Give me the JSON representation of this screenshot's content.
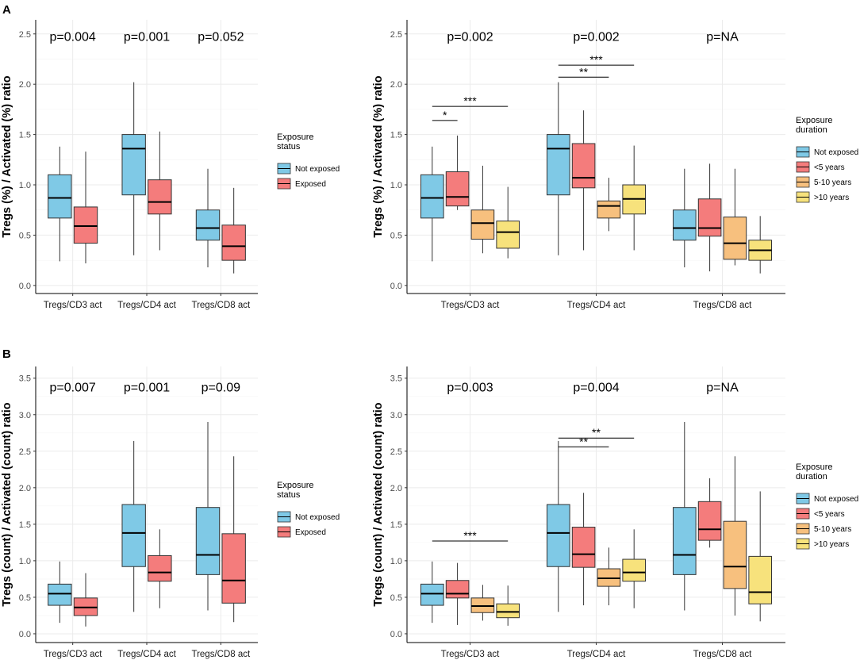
{
  "panel_labels": [
    "A",
    "B"
  ],
  "colors": {
    "Not exposed": "#7FC9E6",
    "Exposed": "#F47C7C",
    "<5 years": "#F47C7C",
    "5-10 years": "#F7C07E",
    ">10 years": "#F7E27C"
  },
  "chart_data": [
    {
      "id": "A-left",
      "type": "box",
      "ylabel": "Tregs (%) / Activated (%) ratio",
      "ylim": [
        -0.08,
        2.64
      ],
      "yticks": [
        0.0,
        0.5,
        1.0,
        1.5,
        2.0,
        2.5
      ],
      "yticklabels": [
        "0.0",
        "0.5",
        "1.0",
        "1.5",
        "2.0",
        "2.5"
      ],
      "categories": [
        "Tregs/CD3 act",
        "Tregs/CD4 act",
        "Tregs/CD8 act"
      ],
      "pvalues": [
        "p=0.004",
        "p=0.001",
        "p=0.052"
      ],
      "legend": {
        "title": "Exposure\nstatus",
        "items": [
          "Not exposed",
          "Exposed"
        ]
      },
      "groups": [
        "Not exposed",
        "Exposed"
      ],
      "boxes": [
        [
          [
            0.24,
            0.67,
            0.87,
            1.1,
            1.38
          ],
          [
            0.22,
            0.42,
            0.59,
            0.78,
            1.33
          ]
        ],
        [
          [
            0.3,
            0.9,
            1.36,
            1.5,
            2.02
          ],
          [
            0.35,
            0.71,
            0.83,
            1.05,
            1.53
          ]
        ],
        [
          [
            0.18,
            0.45,
            0.57,
            0.75,
            1.16
          ],
          [
            0.12,
            0.25,
            0.39,
            0.6,
            0.97
          ]
        ]
      ],
      "brackets": []
    },
    {
      "id": "A-right",
      "type": "box",
      "ylabel": "Tregs (%) / Activated (%) ratio",
      "ylim": [
        -0.08,
        2.64
      ],
      "yticks": [
        0.0,
        0.5,
        1.0,
        1.5,
        2.0,
        2.5
      ],
      "yticklabels": [
        "0.0",
        "0.5",
        "1.0",
        "1.5",
        "2.0",
        "2.5"
      ],
      "categories": [
        "Tregs/CD3 act",
        "Tregs/CD4 act",
        "Tregs/CD8 act"
      ],
      "pvalues": [
        "p=0.002",
        "p=0.002",
        "p=NA"
      ],
      "legend": {
        "title": "Exposure\nduration",
        "items": [
          "Not exposed",
          "<5 years",
          "5-10 years",
          ">10 years"
        ]
      },
      "groups": [
        "Not exposed",
        "<5 years",
        "5-10 years",
        ">10 years"
      ],
      "boxes": [
        [
          [
            0.24,
            0.67,
            0.87,
            1.1,
            1.38
          ],
          [
            0.75,
            0.79,
            0.88,
            1.13,
            1.49
          ],
          [
            0.32,
            0.46,
            0.62,
            0.75,
            1.19
          ],
          [
            0.27,
            0.37,
            0.53,
            0.64,
            0.98
          ]
        ],
        [
          [
            0.3,
            0.9,
            1.36,
            1.5,
            2.02
          ],
          [
            0.35,
            0.97,
            1.07,
            1.41,
            1.74
          ],
          [
            0.54,
            0.67,
            0.79,
            0.84,
            1.07
          ],
          [
            0.35,
            0.71,
            0.86,
            1.0,
            1.39
          ]
        ],
        [
          [
            0.18,
            0.45,
            0.57,
            0.75,
            1.16
          ],
          [
            0.14,
            0.49,
            0.57,
            0.86,
            1.21
          ],
          [
            0.2,
            0.26,
            0.42,
            0.68,
            1.16
          ],
          [
            0.12,
            0.25,
            0.35,
            0.45,
            0.69
          ]
        ]
      ],
      "brackets": [
        {
          "cat": 0,
          "from": 0,
          "to": 1,
          "y": 1.64,
          "label": "*"
        },
        {
          "cat": 0,
          "from": 0,
          "to": 3,
          "y": 1.78,
          "label": "***"
        },
        {
          "cat": 1,
          "from": 0,
          "to": 2,
          "y": 2.07,
          "label": "**"
        },
        {
          "cat": 1,
          "from": 0,
          "to": 3,
          "y": 2.19,
          "label": "***"
        }
      ]
    },
    {
      "id": "B-left",
      "type": "box",
      "ylabel": "Tregs (count) / Activated (count) ratio",
      "ylim": [
        -0.12,
        3.66
      ],
      "yticks": [
        0.0,
        0.5,
        1.0,
        1.5,
        2.0,
        2.5,
        3.0,
        3.5
      ],
      "yticklabels": [
        "0.0",
        "0.5",
        "1.0",
        "1.5",
        "2.0",
        "2.5",
        "3.0",
        "3.5"
      ],
      "categories": [
        "Tregs/CD3 act",
        "Tregs/CD4 act",
        "Tregs/CD8 act"
      ],
      "pvalues": [
        "p=0.007",
        "p=0.001",
        "p=0.09"
      ],
      "legend": {
        "title": "Exposure\nstatus",
        "items": [
          "Not exposed",
          "Exposed"
        ]
      },
      "groups": [
        "Not exposed",
        "Exposed"
      ],
      "boxes": [
        [
          [
            0.15,
            0.39,
            0.55,
            0.68,
            0.99
          ],
          [
            0.1,
            0.25,
            0.36,
            0.49,
            0.83
          ]
        ],
        [
          [
            0.3,
            0.92,
            1.38,
            1.77,
            2.64
          ],
          [
            0.35,
            0.72,
            0.84,
            1.07,
            1.43
          ]
        ],
        [
          [
            0.32,
            0.81,
            1.08,
            1.73,
            2.9
          ],
          [
            0.16,
            0.42,
            0.73,
            1.37,
            2.43
          ]
        ]
      ],
      "brackets": []
    },
    {
      "id": "B-right",
      "type": "box",
      "ylabel": "Tregs (count) / Activated (count) ratio",
      "ylim": [
        -0.12,
        3.66
      ],
      "yticks": [
        0.0,
        0.5,
        1.0,
        1.5,
        2.0,
        2.5,
        3.0,
        3.5
      ],
      "yticklabels": [
        "0.0",
        "0.5",
        "1.0",
        "1.5",
        "2.0",
        "2.5",
        "3.0",
        "3.5"
      ],
      "categories": [
        "Tregs/CD3 act",
        "Tregs/CD4 act",
        "Tregs/CD8 act"
      ],
      "pvalues": [
        "p=0.003",
        "p=0.004",
        "p=NA"
      ],
      "legend": {
        "title": "Exposure\nduration",
        "items": [
          "Not exposed",
          "<5 years",
          "5-10 years",
          ">10 years"
        ]
      },
      "groups": [
        "Not exposed",
        "<5 years",
        "5-10 years",
        ">10 years"
      ],
      "boxes": [
        [
          [
            0.15,
            0.39,
            0.55,
            0.68,
            0.99
          ],
          [
            0.12,
            0.49,
            0.55,
            0.73,
            0.97
          ],
          [
            0.18,
            0.29,
            0.38,
            0.49,
            0.67
          ],
          [
            0.11,
            0.22,
            0.3,
            0.41,
            0.66
          ]
        ],
        [
          [
            0.3,
            0.92,
            1.38,
            1.77,
            2.64
          ],
          [
            0.39,
            0.91,
            1.09,
            1.46,
            1.93
          ],
          [
            0.39,
            0.65,
            0.76,
            0.89,
            1.18
          ],
          [
            0.35,
            0.72,
            0.84,
            1.02,
            1.43
          ]
        ],
        [
          [
            0.32,
            0.81,
            1.08,
            1.73,
            2.9
          ],
          [
            1.18,
            1.28,
            1.43,
            1.81,
            2.13
          ],
          [
            0.25,
            0.62,
            0.92,
            1.54,
            2.43
          ],
          [
            0.17,
            0.41,
            0.57,
            1.06,
            1.95
          ]
        ]
      ],
      "brackets": [
        {
          "cat": 0,
          "from": 0,
          "to": 3,
          "y": 1.27,
          "label": "***"
        },
        {
          "cat": 1,
          "from": 0,
          "to": 2,
          "y": 2.56,
          "label": "**"
        },
        {
          "cat": 1,
          "from": 0,
          "to": 3,
          "y": 2.68,
          "label": "**"
        }
      ]
    }
  ]
}
